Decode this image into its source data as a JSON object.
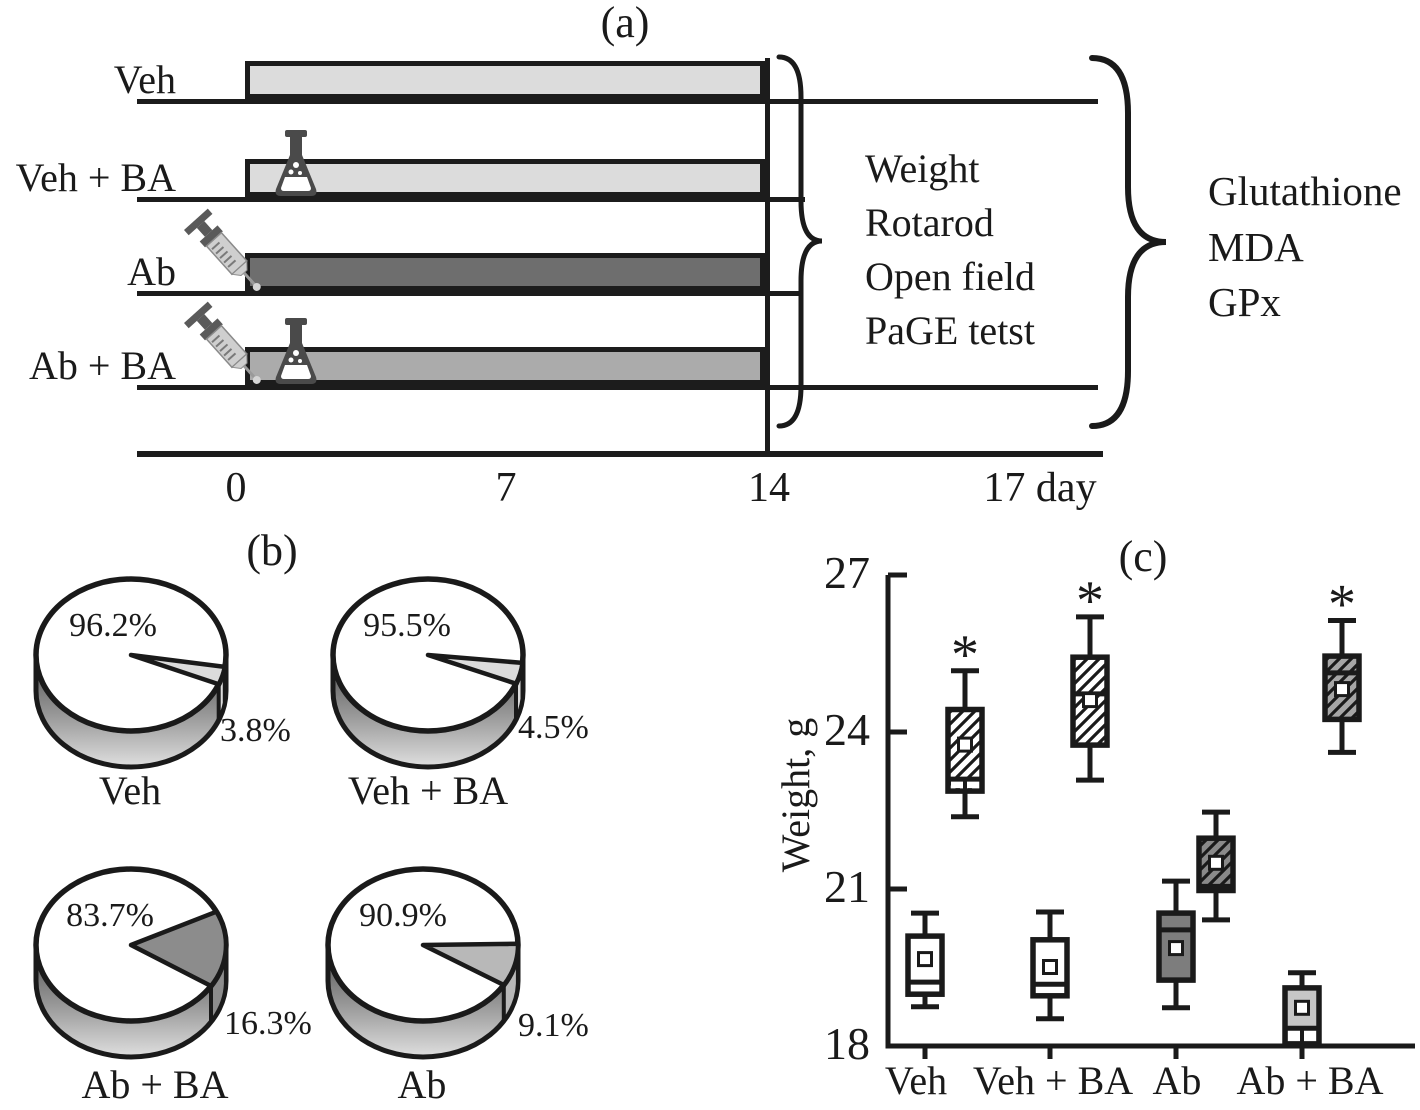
{
  "panel_a": {
    "title": "(a)",
    "groups": [
      {
        "label": "Veh"
      },
      {
        "label": "Veh + BA"
      },
      {
        "label": "Ab"
      },
      {
        "label": "Ab + BA"
      }
    ],
    "timeline": {
      "t0": "0",
      "t7": "7",
      "t14": "14",
      "t17": "17 day"
    },
    "tests": [
      "Weight",
      "Rotarod",
      "Open field",
      "PaGE tetst"
    ],
    "outcomes": [
      "Glutathione",
      "MDA",
      "GPx"
    ]
  },
  "panel_b": {
    "title": "(b)"
  },
  "colors": {
    "bar_light": "#dcdcdc",
    "bar_dark": "#6e6e6e",
    "bar_medium": "#ababab",
    "outline": "#1a1a1a"
  },
  "chart_data": [
    {
      "type": "pie",
      "title": "Veh",
      "labels": [
        "96.2%",
        "3.8%"
      ],
      "values": [
        96.2,
        3.8
      ],
      "slice_color": "#dcdcdc",
      "slice_start_deg": 9,
      "legend_position": "none"
    },
    {
      "type": "pie",
      "title": "Veh + BA",
      "labels": [
        "95.5%",
        "4.5%"
      ],
      "values": [
        95.5,
        4.5
      ],
      "slice_color": "#dcdcdc",
      "slice_start_deg": 6,
      "legend_position": "none"
    },
    {
      "type": "pie",
      "title": "Ab + BA",
      "labels": [
        "83.7%",
        "16.3%"
      ],
      "values": [
        83.7,
        16.3
      ],
      "slice_color": "#8c8c8c",
      "slice_start_deg": -26,
      "legend_position": "none"
    },
    {
      "type": "pie",
      "title": "Ab",
      "labels": [
        "90.9%",
        "9.1%"
      ],
      "values": [
        90.9,
        9.1
      ],
      "slice_color": "#b8b8b8",
      "slice_start_deg": -1,
      "legend_position": "none"
    },
    {
      "type": "box",
      "title": "(c)",
      "ylabel": "Weight, g",
      "ylim": [
        18,
        27
      ],
      "ytick_labels": [
        "27",
        "24",
        "21",
        "18"
      ],
      "categories": [
        "Veh",
        "Veh + BA",
        "Ab",
        "Ab + BA"
      ],
      "significance_marker": "*",
      "series": [
        {
          "name": "baseline",
          "boxes": [
            {
              "whisker_low": 18.75,
              "q1": 18.99,
              "median": 19.22,
              "mean": 19.66,
              "q3": 20.1,
              "whisker_high": 20.54,
              "style": "white"
            },
            {
              "whisker_low": 18.52,
              "q1": 18.96,
              "median": 19.18,
              "mean": 19.51,
              "q3": 20.03,
              "whisker_high": 20.56,
              "style": "white"
            },
            {
              "whisker_low": 18.73,
              "q1": 19.26,
              "median": 20.22,
              "mean": 19.87,
              "q3": 20.54,
              "whisker_high": 21.15,
              "style": "dark-gray"
            },
            {
              "whisker_low": null,
              "q1": 18.04,
              "median": 18.34,
              "mean": 18.73,
              "q3": 19.11,
              "whisker_high": 19.4,
              "style": "light-gray",
              "white_strip": true
            }
          ]
        },
        {
          "name": "treated",
          "boxes": [
            {
              "whisker_low": 22.38,
              "q1": 22.87,
              "median": 23.1,
              "mean": 23.76,
              "q3": 24.43,
              "whisker_high": 25.17,
              "style": "hatch-white",
              "significant": true,
              "white_strip": true
            },
            {
              "whisker_low": 23.08,
              "q1": 23.75,
              "median": 24.73,
              "mean": 24.61,
              "q3": 25.43,
              "whisker_high": 26.2,
              "style": "hatch-white",
              "significant": true
            },
            {
              "whisker_low": 20.41,
              "q1": 20.97,
              "median": 21.05,
              "mean": 21.5,
              "q3": 21.97,
              "whisker_high": 22.47,
              "style": "hatch-dark"
            },
            {
              "whisker_low": 23.61,
              "q1": 24.24,
              "median": 25.13,
              "mean": 24.82,
              "q3": 25.45,
              "whisker_high": 26.13,
              "style": "hatch-gray",
              "significant": true
            }
          ]
        }
      ]
    }
  ]
}
